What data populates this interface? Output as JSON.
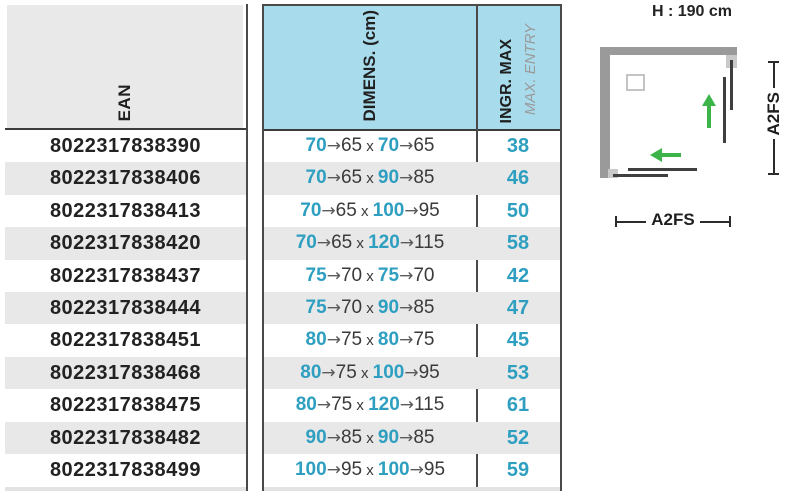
{
  "table": {
    "headers": {
      "ean": "EAN",
      "dimensions": "DIMENS. (cm)",
      "ingr_max": "INGR. MAX",
      "max_entry": "MAX. ENTRY"
    },
    "arrow": "→",
    "separator": "x",
    "rows": [
      {
        "ean": "8022317838390",
        "width_from": "70",
        "width_to": "65",
        "depth_from": "70",
        "depth_to": "65",
        "max_entry": "38"
      },
      {
        "ean": "8022317838406",
        "width_from": "70",
        "width_to": "65",
        "depth_from": "90",
        "depth_to": "85",
        "max_entry": "46"
      },
      {
        "ean": "8022317838413",
        "width_from": "70",
        "width_to": "65",
        "depth_from": "100",
        "depth_to": "95",
        "max_entry": "50"
      },
      {
        "ean": "8022317838420",
        "width_from": "70",
        "width_to": "65",
        "depth_from": "120",
        "depth_to": "115",
        "max_entry": "58"
      },
      {
        "ean": "8022317838437",
        "width_from": "75",
        "width_to": "70",
        "depth_from": "75",
        "depth_to": "70",
        "max_entry": "42"
      },
      {
        "ean": "8022317838444",
        "width_from": "75",
        "width_to": "70",
        "depth_from": "90",
        "depth_to": "85",
        "max_entry": "47"
      },
      {
        "ean": "8022317838451",
        "width_from": "80",
        "width_to": "75",
        "depth_from": "80",
        "depth_to": "75",
        "max_entry": "45"
      },
      {
        "ean": "8022317838468",
        "width_from": "80",
        "width_to": "75",
        "depth_from": "100",
        "depth_to": "95",
        "max_entry": "53"
      },
      {
        "ean": "8022317838475",
        "width_from": "80",
        "width_to": "75",
        "depth_from": "120",
        "depth_to": "115",
        "max_entry": "61"
      },
      {
        "ean": "8022317838482",
        "width_from": "90",
        "width_to": "85",
        "depth_from": "90",
        "depth_to": "85",
        "max_entry": "52"
      },
      {
        "ean": "8022317838499",
        "width_from": "100",
        "width_to": "95",
        "depth_from": "100",
        "depth_to": "95",
        "max_entry": "59"
      }
    ]
  },
  "diagram": {
    "title": "H : 190 cm",
    "side_label": "A2FS",
    "bottom_label": "A2FS"
  },
  "colors": {
    "header_blue": "#A8DBEC",
    "accent_teal": "#2E9FC0",
    "stripe_gray": "#E8E8E8",
    "wall_gray": "#9A9A9A",
    "arrow_green": "#3CB44A"
  }
}
